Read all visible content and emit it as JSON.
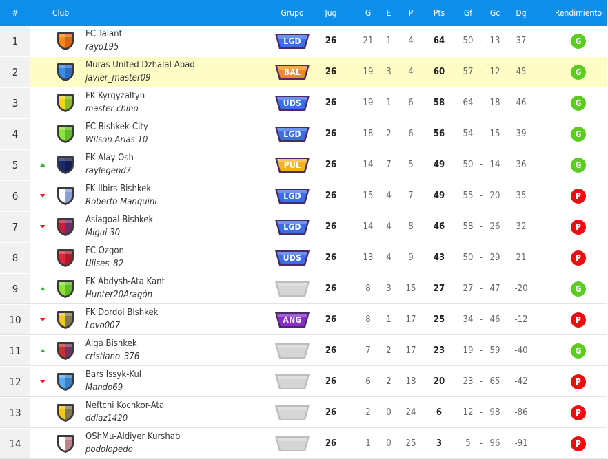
{
  "header": {
    "pos": "#",
    "club": "Club",
    "grupo": "Grupo",
    "jug": "Jug",
    "g": "G",
    "e": "E",
    "p": "P",
    "pts": "Pts",
    "gf": "Gf",
    "gc": "Gc",
    "dg": "Dg",
    "rendimiento": "Rendimiento"
  },
  "colors": {
    "header_bg": "#0d8ee8",
    "highlight_row": "#fefdc6",
    "badge_G": "#5ccc21",
    "badge_P": "#e80f0f",
    "LGD": "#3b6fe8",
    "BAL": "#f08a1c",
    "UDS": "#3b6fe8",
    "PUL": "#f6b21e",
    "ANG": "#8a2dc8",
    "empty": "#d5d5d5"
  },
  "rows": [
    {
      "pos": "1",
      "club": "FC Talant",
      "manager": "rayo195",
      "group": "LGD",
      "jug": "26",
      "g": "21",
      "e": "1",
      "p": "4",
      "pts": "64",
      "gf": "50",
      "gc": "13",
      "dg": "37",
      "result": "G",
      "trend": "none",
      "crest": [
        "#ff8a1a",
        "#c2410c"
      ],
      "highlight": false
    },
    {
      "pos": "2",
      "club": "Muras United Dzhalal-Abad",
      "manager": "javier_master09",
      "group": "BAL",
      "jug": "26",
      "g": "19",
      "e": "3",
      "p": "4",
      "pts": "60",
      "gf": "57",
      "gc": "12",
      "dg": "45",
      "result": "G",
      "trend": "none",
      "crest": [
        "#3a8ee6",
        "#1d4ea8"
      ],
      "highlight": true
    },
    {
      "pos": "3",
      "club": "FK Kyrgyzaltyn",
      "manager": "master chino",
      "group": "UDS",
      "jug": "26",
      "g": "19",
      "e": "1",
      "p": "6",
      "pts": "58",
      "gf": "64",
      "gc": "18",
      "dg": "46",
      "result": "G",
      "trend": "none",
      "crest": [
        "#f5d316",
        "#2faa34"
      ],
      "highlight": false
    },
    {
      "pos": "4",
      "club": "FC Bishkek-City",
      "manager": "Wilson Arias 10",
      "group": "LGD",
      "jug": "26",
      "g": "18",
      "e": "2",
      "p": "6",
      "pts": "56",
      "gf": "54",
      "gc": "15",
      "dg": "39",
      "result": "G",
      "trend": "none",
      "crest": [
        "#8fe23a",
        "#3d9a1a"
      ],
      "highlight": false
    },
    {
      "pos": "5",
      "club": "FK Alay Osh",
      "manager": "raylegend7",
      "group": "PUL",
      "jug": "26",
      "g": "14",
      "e": "7",
      "p": "5",
      "pts": "49",
      "gf": "50",
      "gc": "14",
      "dg": "36",
      "result": "G",
      "trend": "up",
      "crest": [
        "#1a2a6c",
        "#0b1440"
      ],
      "highlight": false
    },
    {
      "pos": "6",
      "club": "FK Ilbirs Bishkek",
      "manager": "Roberto Manquini",
      "group": "LGD",
      "jug": "26",
      "g": "15",
      "e": "4",
      "p": "7",
      "pts": "49",
      "gf": "55",
      "gc": "20",
      "dg": "35",
      "result": "P",
      "trend": "down",
      "crest": [
        "#ffffff",
        "#2a48b5"
      ],
      "highlight": false
    },
    {
      "pos": "7",
      "club": "Asiagoal Bishkek",
      "manager": "Migui 30",
      "group": "LGD",
      "jug": "26",
      "g": "14",
      "e": "4",
      "p": "8",
      "pts": "46",
      "gf": "58",
      "gc": "26",
      "dg": "32",
      "result": "P",
      "trend": "down",
      "crest": [
        "#c81e36",
        "#1f3a8a"
      ],
      "highlight": false
    },
    {
      "pos": "8",
      "club": "FC Ozgon",
      "manager": "Ulises_82",
      "group": "UDS",
      "jug": "26",
      "g": "13",
      "e": "4",
      "p": "9",
      "pts": "43",
      "gf": "50",
      "gc": "29",
      "dg": "21",
      "result": "P",
      "trend": "none",
      "crest": [
        "#e0263a",
        "#8a0f1e"
      ],
      "highlight": false
    },
    {
      "pos": "9",
      "club": "FK Abdysh-Ata Kant",
      "manager": "Hunter20Aragón",
      "group": "",
      "jug": "26",
      "g": "8",
      "e": "3",
      "p": "15",
      "pts": "27",
      "gf": "27",
      "gc": "47",
      "dg": "-20",
      "result": "G",
      "trend": "up",
      "crest": [
        "#8fe23a",
        "#3d9a1a"
      ],
      "highlight": false
    },
    {
      "pos": "10",
      "club": "FK Dordoi Bishkek",
      "manager": "Lovo007",
      "group": "ANG",
      "jug": "26",
      "g": "8",
      "e": "1",
      "p": "17",
      "pts": "25",
      "gf": "34",
      "gc": "46",
      "dg": "-12",
      "result": "P",
      "trend": "down",
      "crest": [
        "#f5c816",
        "#1d3a8a"
      ],
      "highlight": false
    },
    {
      "pos": "11",
      "club": "Alga Bishkek",
      "manager": "cristiano_376",
      "group": "",
      "jug": "26",
      "g": "7",
      "e": "2",
      "p": "17",
      "pts": "23",
      "gf": "19",
      "gc": "59",
      "dg": "-40",
      "result": "G",
      "trend": "up",
      "crest": [
        "#d82a2a",
        "#1f3a8a"
      ],
      "highlight": false
    },
    {
      "pos": "12",
      "club": "Bars Issyk-Kul",
      "manager": "Mando69",
      "group": "",
      "jug": "26",
      "g": "6",
      "e": "2",
      "p": "18",
      "pts": "20",
      "gf": "23",
      "gc": "65",
      "dg": "-42",
      "result": "P",
      "trend": "down",
      "crest": [
        "#5aaaf0",
        "#1c5ea8"
      ],
      "highlight": false
    },
    {
      "pos": "13",
      "club": "Neftchi Kochkor-Ata",
      "manager": "ddiaz1420",
      "group": "",
      "jug": "26",
      "g": "2",
      "e": "0",
      "p": "24",
      "pts": "6",
      "gf": "12",
      "gc": "98",
      "dg": "-86",
      "result": "P",
      "trend": "none",
      "crest": [
        "#f5c816",
        "#1d3a8a"
      ],
      "highlight": false
    },
    {
      "pos": "14",
      "club": "OShMu-Aldiyer Kurshab",
      "manager": "podolopedo",
      "group": "",
      "jug": "26",
      "g": "1",
      "e": "0",
      "p": "25",
      "pts": "3",
      "gf": "5",
      "gc": "96",
      "dg": "-91",
      "result": "P",
      "trend": "none",
      "crest": [
        "#ffffff",
        "#8a1a2a"
      ],
      "highlight": false
    }
  ]
}
